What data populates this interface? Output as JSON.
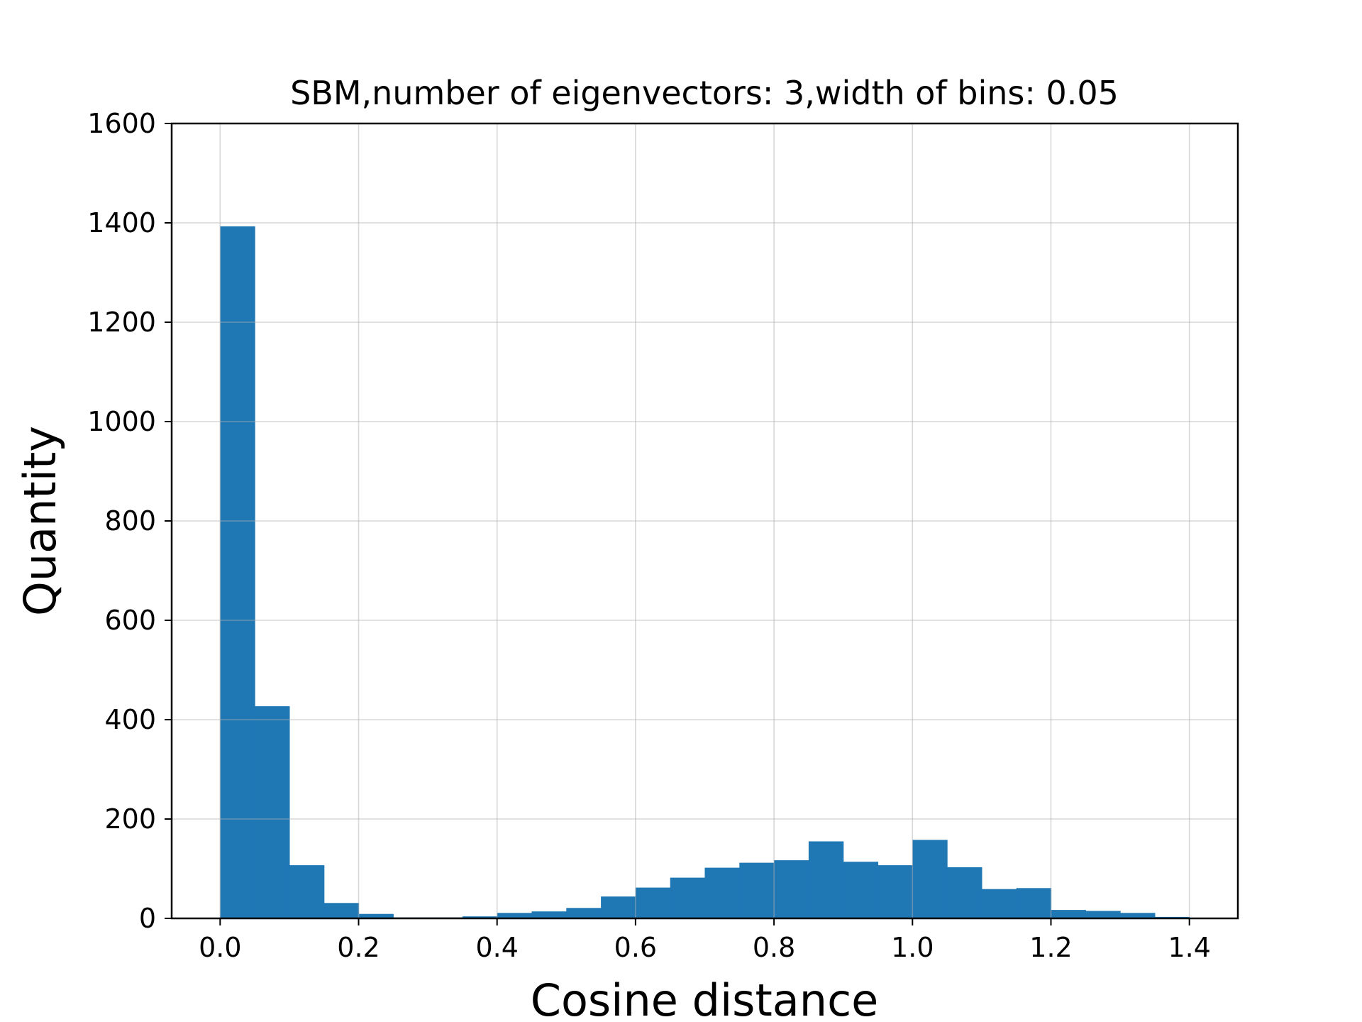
{
  "chart_data": {
    "type": "bar",
    "title": "SBM,number of eigenvectors: 3,width of bins: 0.05",
    "xlabel": "Cosine distance",
    "ylabel": "Quantity",
    "xlim": [
      -0.07,
      1.47
    ],
    "ylim": [
      0,
      1600
    ],
    "grid": true,
    "bar_color": "#1f77b4",
    "bin_width": 0.05,
    "xticks": [
      0.0,
      0.2,
      0.4,
      0.6,
      0.8,
      1.0,
      1.2,
      1.4
    ],
    "xtick_labels": [
      "0.0",
      "0.2",
      "0.4",
      "0.6",
      "0.8",
      "1.0",
      "1.2",
      "1.4"
    ],
    "yticks": [
      0,
      200,
      400,
      600,
      800,
      1000,
      1200,
      1400,
      1600
    ],
    "ytick_labels": [
      "0",
      "200",
      "400",
      "600",
      "800",
      "1000",
      "1200",
      "1400",
      "1600"
    ],
    "bins": [
      0.0,
      0.05,
      0.1,
      0.15,
      0.2,
      0.25,
      0.3,
      0.35,
      0.4,
      0.45,
      0.5,
      0.55,
      0.6,
      0.65,
      0.7,
      0.75,
      0.8,
      0.85,
      0.9,
      0.95,
      1.0,
      1.05,
      1.1,
      1.15,
      1.2,
      1.25,
      1.3,
      1.35
    ],
    "values": [
      1393,
      427,
      107,
      31,
      9,
      2,
      2,
      4,
      11,
      14,
      21,
      44,
      62,
      82,
      102,
      112,
      117,
      155,
      114,
      107,
      158,
      103,
      59,
      61,
      17,
      15,
      11,
      3
    ]
  }
}
